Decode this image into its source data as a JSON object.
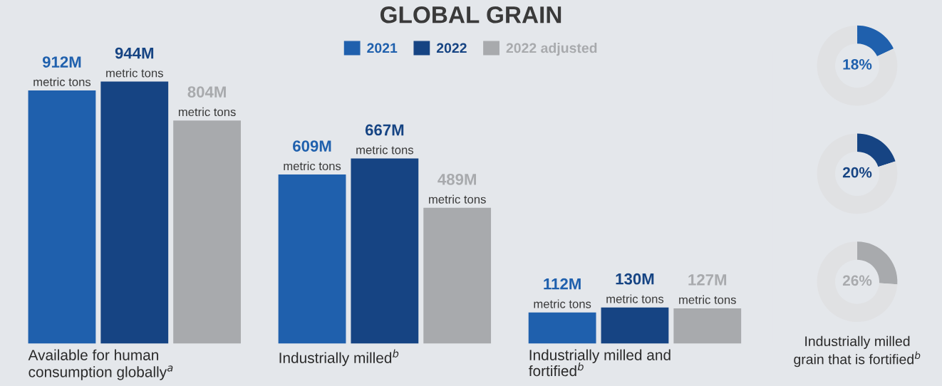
{
  "chart_data": [
    {
      "type": "bar",
      "title": "GLOBAL GRAIN",
      "legend": "top",
      "categories": [
        "Available for human\nconsumption globally$^{a}$",
        "Industrially milled$^{b}$",
        "Industrially milled and\nfortified$^{b}$"
      ],
      "series": [
        {
          "name": "2021",
          "color": "#1f60ad",
          "values": [
            912,
            609,
            112
          ],
          "value_labels": [
            "912M\nmetric tons",
            "609M\nmetric tons",
            "112M\nmetric tons"
          ]
        },
        {
          "name": "2022",
          "color": "#164483",
          "values": [
            944,
            667,
            130
          ],
          "value_labels": [
            "944M\nmetric tons",
            "667M\nmetric tons",
            "130M\nmetric tons"
          ]
        },
        {
          "name": "2022 adjusted",
          "color": "#a8aaad",
          "values": [
            804,
            489,
            127
          ],
          "value_labels": [
            "804M\nmetric tons",
            "489M\nmetric tons",
            "127M\nmetric tons"
          ]
        }
      ]
    },
    {
      "type": "donut",
      "categories": [
        null,
        null
      ],
      "values": [
        18,
        82
      ],
      "colors": [
        "#1f60ad",
        "#e0e1e3"
      ],
      "value_labels": [
        "18%",
        null
      ]
    },
    {
      "type": "donut",
      "categories": [
        null,
        null
      ],
      "values": [
        20,
        80
      ],
      "colors": [
        "#164483",
        "#e0e1e3"
      ],
      "value_labels": [
        "20%",
        null
      ]
    },
    {
      "type": "donut",
      "categories": [
        null,
        null
      ],
      "values": [
        26,
        74
      ],
      "colors": [
        "#a8aaad",
        "#e0e1e3"
      ],
      "value_labels": [
        "26%",
        null
      ],
      "xlabel": "Industrially milled\ngrain that is fortified$^{b}$"
    }
  ]
}
